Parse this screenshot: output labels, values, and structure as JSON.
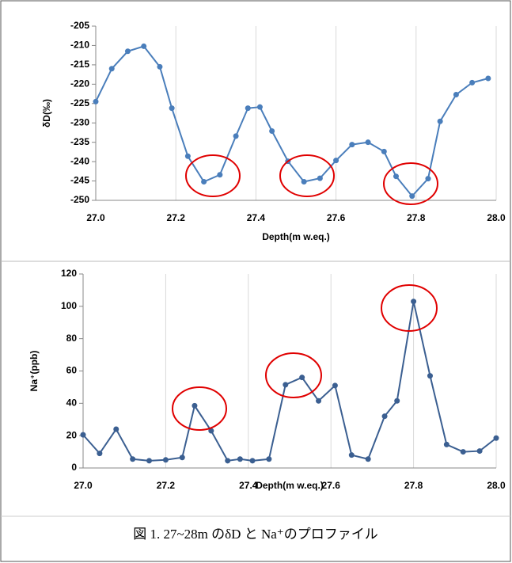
{
  "chart_data": [
    {
      "type": "line",
      "ylabel": "δD(‰)",
      "xlabel": "Depth(m w.eq.)",
      "color": "#4a7ebb",
      "grid": true,
      "x": [
        27.0,
        27.04,
        27.08,
        27.12,
        27.16,
        27.19,
        27.23,
        27.27,
        27.31,
        27.35,
        27.38,
        27.41,
        27.44,
        27.48,
        27.52,
        27.56,
        27.6,
        27.64,
        27.68,
        27.72,
        27.75,
        27.79,
        27.83,
        27.86,
        27.9,
        27.94,
        27.98
      ],
      "values": [
        -224.5,
        -216,
        -211.5,
        -210.2,
        -215.5,
        -226.2,
        -238.6,
        -245.2,
        -243.4,
        -233.4,
        -226.2,
        -225.9,
        -232.1,
        -239.9,
        -245.2,
        -244.3,
        -239.7,
        -235.6,
        -235,
        -237.4,
        -243.8,
        -248.9,
        -244.4,
        -229.6,
        -222.7,
        -219.6,
        -218.5
      ],
      "xlim": [
        27.0,
        28.0
      ],
      "xticks": [
        {
          "value": 27.0,
          "label": "27.0"
        },
        27.2,
        27.4,
        27.6,
        27.8,
        {
          "value": 28.0,
          "label": "28.0"
        }
      ],
      "ylim": [
        -250,
        -205
      ],
      "yticks": [
        -205,
        -210,
        -215,
        -220,
        -225,
        -230,
        -235,
        -240,
        -245,
        -250
      ]
    },
    {
      "type": "line",
      "ylabel": "Na⁺(ppb)",
      "xlabel": "Depth(m w.eq.)",
      "color": "#3b5f91",
      "grid": true,
      "x": [
        27.0,
        27.04,
        27.08,
        27.12,
        27.16,
        27.2,
        27.24,
        27.27,
        27.31,
        27.35,
        27.38,
        27.41,
        27.45,
        27.49,
        27.53,
        27.57,
        27.61,
        27.65,
        27.69,
        27.73,
        27.76,
        27.8,
        27.84,
        27.88,
        27.92,
        27.96,
        28.0
      ],
      "values": [
        20.5,
        9,
        24,
        5.5,
        4.5,
        5,
        6.5,
        38.5,
        23,
        4.5,
        5.5,
        4.5,
        5.5,
        51.5,
        56,
        41.5,
        51,
        8,
        5.5,
        32,
        41.5,
        103,
        57,
        14.5,
        10,
        10.5,
        18.5
      ],
      "xlim": [
        27.0,
        28.0
      ],
      "xticks": [
        {
          "value": 27.0,
          "label": "27.0"
        },
        27.2,
        27.4,
        27.6,
        27.8,
        {
          "value": 28.0,
          "label": "28.0"
        }
      ],
      "ylim": [
        0,
        120
      ],
      "yticks": [
        0,
        20,
        40,
        60,
        80,
        100,
        120
      ]
    }
  ],
  "caption": "図 1. 27~28m のδD と Na⁺のプロファイル"
}
